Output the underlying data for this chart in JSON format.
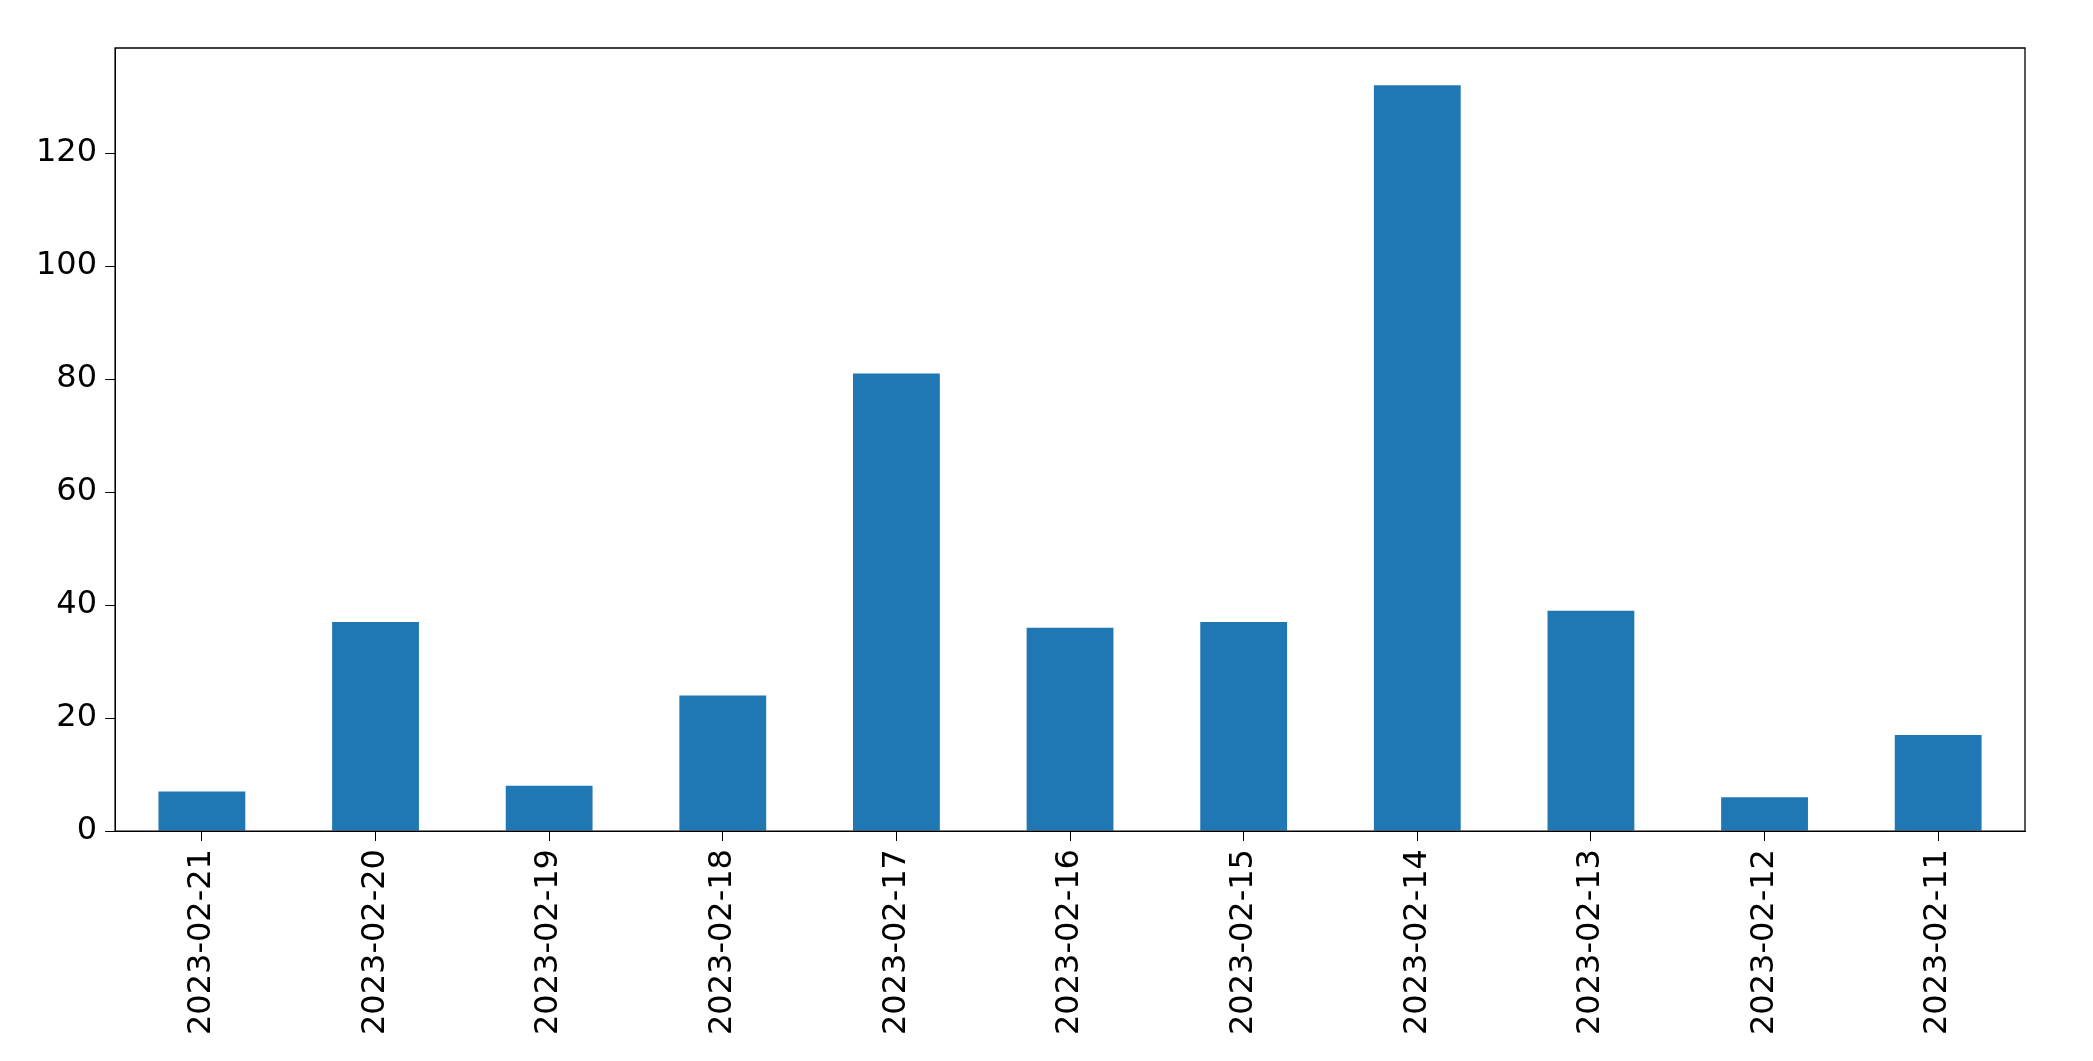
{
  "chart_data": {
    "type": "bar",
    "categories": [
      "2023-02-21",
      "2023-02-20",
      "2023-02-19",
      "2023-02-18",
      "2023-02-17",
      "2023-02-16",
      "2023-02-15",
      "2023-02-14",
      "2023-02-13",
      "2023-02-12",
      "2023-02-11"
    ],
    "values": [
      7,
      37,
      8,
      24,
      81,
      36,
      37,
      132,
      39,
      6,
      17
    ],
    "color": "#1f77b4",
    "ylim": [
      0,
      138.6
    ],
    "yticks": [
      0,
      20,
      40,
      60,
      80,
      100,
      120
    ],
    "legend": false
  }
}
